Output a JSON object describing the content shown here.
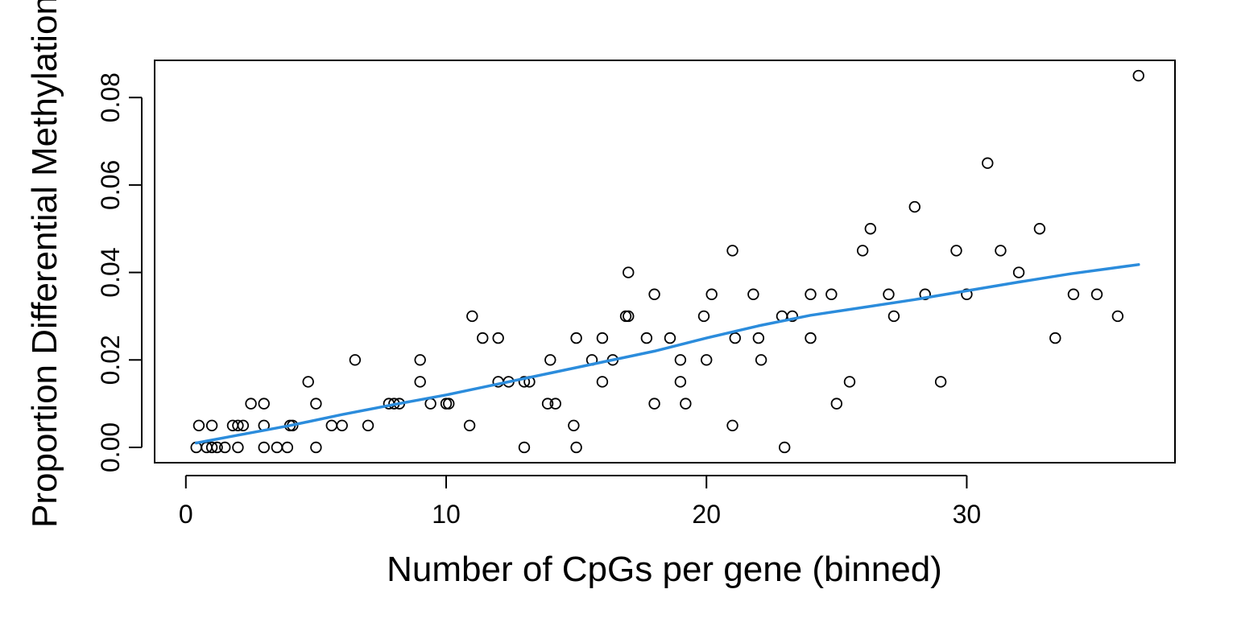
{
  "chart_data": {
    "type": "scatter",
    "xlabel": "Number of CpGs per gene (binned)",
    "ylabel": "Proportion Differential Methylation",
    "xlim": [
      -1.2,
      38
    ],
    "ylim": [
      -0.0035,
      0.0885
    ],
    "x_ticks": [
      0,
      10,
      20,
      30
    ],
    "y_ticks": [
      0.0,
      0.02,
      0.04,
      0.06,
      0.08
    ],
    "x_tick_labels": [
      "0",
      "10",
      "20",
      "30"
    ],
    "y_tick_labels": [
      "0.00",
      "0.02",
      "0.04",
      "0.06",
      "0.08"
    ],
    "grid": false,
    "point_color": "#000000",
    "line_color": "#2b8cdc",
    "points": [
      [
        0.4,
        0.0
      ],
      [
        0.5,
        0.005
      ],
      [
        0.8,
        0.0
      ],
      [
        1.0,
        0.0
      ],
      [
        1.0,
        0.005
      ],
      [
        1.2,
        0.0
      ],
      [
        1.5,
        0.0
      ],
      [
        1.8,
        0.005
      ],
      [
        2.0,
        0.0
      ],
      [
        2.0,
        0.005
      ],
      [
        2.2,
        0.005
      ],
      [
        2.5,
        0.01
      ],
      [
        3.0,
        0.0
      ],
      [
        3.0,
        0.005
      ],
      [
        3.0,
        0.01
      ],
      [
        3.5,
        0.0
      ],
      [
        3.9,
        0.0
      ],
      [
        4.0,
        0.005
      ],
      [
        4.1,
        0.005
      ],
      [
        4.7,
        0.015
      ],
      [
        5.0,
        0.0
      ],
      [
        5.0,
        0.01
      ],
      [
        5.6,
        0.005
      ],
      [
        6.0,
        0.005
      ],
      [
        6.5,
        0.02
      ],
      [
        7.0,
        0.005
      ],
      [
        7.8,
        0.01
      ],
      [
        8.0,
        0.01
      ],
      [
        8.2,
        0.01
      ],
      [
        9.0,
        0.015
      ],
      [
        9.0,
        0.02
      ],
      [
        9.4,
        0.01
      ],
      [
        10.0,
        0.01
      ],
      [
        10.1,
        0.01
      ],
      [
        10.9,
        0.005
      ],
      [
        11.0,
        0.03
      ],
      [
        11.4,
        0.025
      ],
      [
        12.0,
        0.015
      ],
      [
        12.0,
        0.025
      ],
      [
        12.4,
        0.015
      ],
      [
        13.0,
        0.0
      ],
      [
        13.0,
        0.015
      ],
      [
        13.2,
        0.015
      ],
      [
        13.9,
        0.01
      ],
      [
        14.0,
        0.02
      ],
      [
        14.2,
        0.01
      ],
      [
        14.9,
        0.005
      ],
      [
        15.0,
        0.0
      ],
      [
        15.0,
        0.025
      ],
      [
        15.6,
        0.02
      ],
      [
        16.0,
        0.015
      ],
      [
        16.0,
        0.025
      ],
      [
        16.4,
        0.02
      ],
      [
        16.9,
        0.03
      ],
      [
        17.0,
        0.03
      ],
      [
        17.0,
        0.04
      ],
      [
        17.7,
        0.025
      ],
      [
        18.0,
        0.01
      ],
      [
        18.0,
        0.035
      ],
      [
        18.6,
        0.025
      ],
      [
        19.0,
        0.015
      ],
      [
        19.0,
        0.02
      ],
      [
        19.2,
        0.01
      ],
      [
        19.9,
        0.03
      ],
      [
        20.0,
        0.02
      ],
      [
        20.2,
        0.035
      ],
      [
        21.0,
        0.005
      ],
      [
        21.0,
        0.045
      ],
      [
        21.1,
        0.025
      ],
      [
        21.8,
        0.035
      ],
      [
        22.0,
        0.025
      ],
      [
        22.1,
        0.02
      ],
      [
        22.9,
        0.03
      ],
      [
        23.0,
        0.0
      ],
      [
        23.3,
        0.03
      ],
      [
        24.0,
        0.025
      ],
      [
        24.0,
        0.035
      ],
      [
        24.8,
        0.035
      ],
      [
        25.0,
        0.01
      ],
      [
        25.5,
        0.015
      ],
      [
        26.0,
        0.045
      ],
      [
        26.3,
        0.05
      ],
      [
        27.0,
        0.035
      ],
      [
        27.2,
        0.03
      ],
      [
        28.0,
        0.055
      ],
      [
        28.4,
        0.035
      ],
      [
        29.0,
        0.015
      ],
      [
        29.6,
        0.045
      ],
      [
        30.0,
        0.035
      ],
      [
        30.8,
        0.065
      ],
      [
        31.3,
        0.045
      ],
      [
        32.0,
        0.04
      ],
      [
        32.8,
        0.05
      ],
      [
        33.4,
        0.025
      ],
      [
        34.1,
        0.035
      ],
      [
        35.0,
        0.035
      ],
      [
        35.8,
        0.03
      ],
      [
        36.6,
        0.085
      ]
    ],
    "fit_line": [
      [
        0.4,
        0.001
      ],
      [
        2.0,
        0.0028
      ],
      [
        4.0,
        0.005
      ],
      [
        6.0,
        0.0075
      ],
      [
        8.0,
        0.0098
      ],
      [
        10.0,
        0.012
      ],
      [
        12.0,
        0.0145
      ],
      [
        14.0,
        0.017
      ],
      [
        16.0,
        0.0195
      ],
      [
        18.0,
        0.022
      ],
      [
        20.0,
        0.025
      ],
      [
        22.0,
        0.0278
      ],
      [
        24.0,
        0.0302
      ],
      [
        26.0,
        0.032
      ],
      [
        28.0,
        0.0338
      ],
      [
        30.0,
        0.0358
      ],
      [
        32.0,
        0.0378
      ],
      [
        34.0,
        0.0397
      ],
      [
        36.6,
        0.0418
      ]
    ]
  }
}
